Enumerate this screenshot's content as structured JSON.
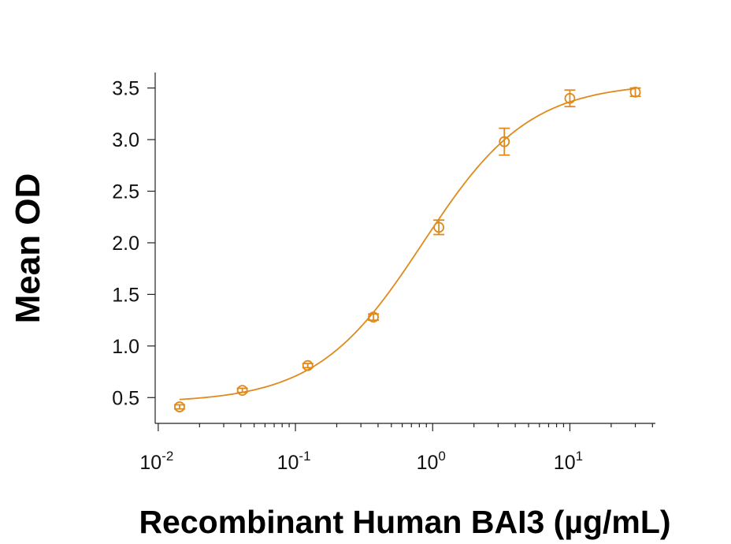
{
  "chart_data": {
    "type": "scatter",
    "xlabel": "Recombinant Human BAI3 (µg/mL)",
    "ylabel": "Mean OD",
    "x_scale": "log",
    "xlim": [
      0.0095,
      42
    ],
    "ylim": [
      0.25,
      3.65
    ],
    "grid": false,
    "legend": "none",
    "color": "#e08a1e",
    "y_ticks": [
      "0.5",
      "1.0",
      "1.5",
      "2.0",
      "2.5",
      "3.0",
      "3.5"
    ],
    "x_ticks": [
      {
        "base": "10",
        "exp": "-2"
      },
      {
        "base": "10",
        "exp": "-1"
      },
      {
        "base": "10",
        "exp": "0"
      },
      {
        "base": "10",
        "exp": "1"
      }
    ],
    "series": [
      {
        "x": [
          0.0143,
          0.041,
          0.123,
          0.37,
          1.11,
          3.33,
          10,
          30
        ],
        "y": [
          0.41,
          0.57,
          0.81,
          1.28,
          2.15,
          2.98,
          3.4,
          3.46
        ],
        "err": [
          0.02,
          0.02,
          0.02,
          0.03,
          0.07,
          0.13,
          0.08,
          0.04
        ]
      }
    ],
    "fit": {
      "model": "4PL",
      "bottom": 0.45,
      "top": 3.55,
      "ec50": 0.85,
      "hill": 1.12
    }
  }
}
